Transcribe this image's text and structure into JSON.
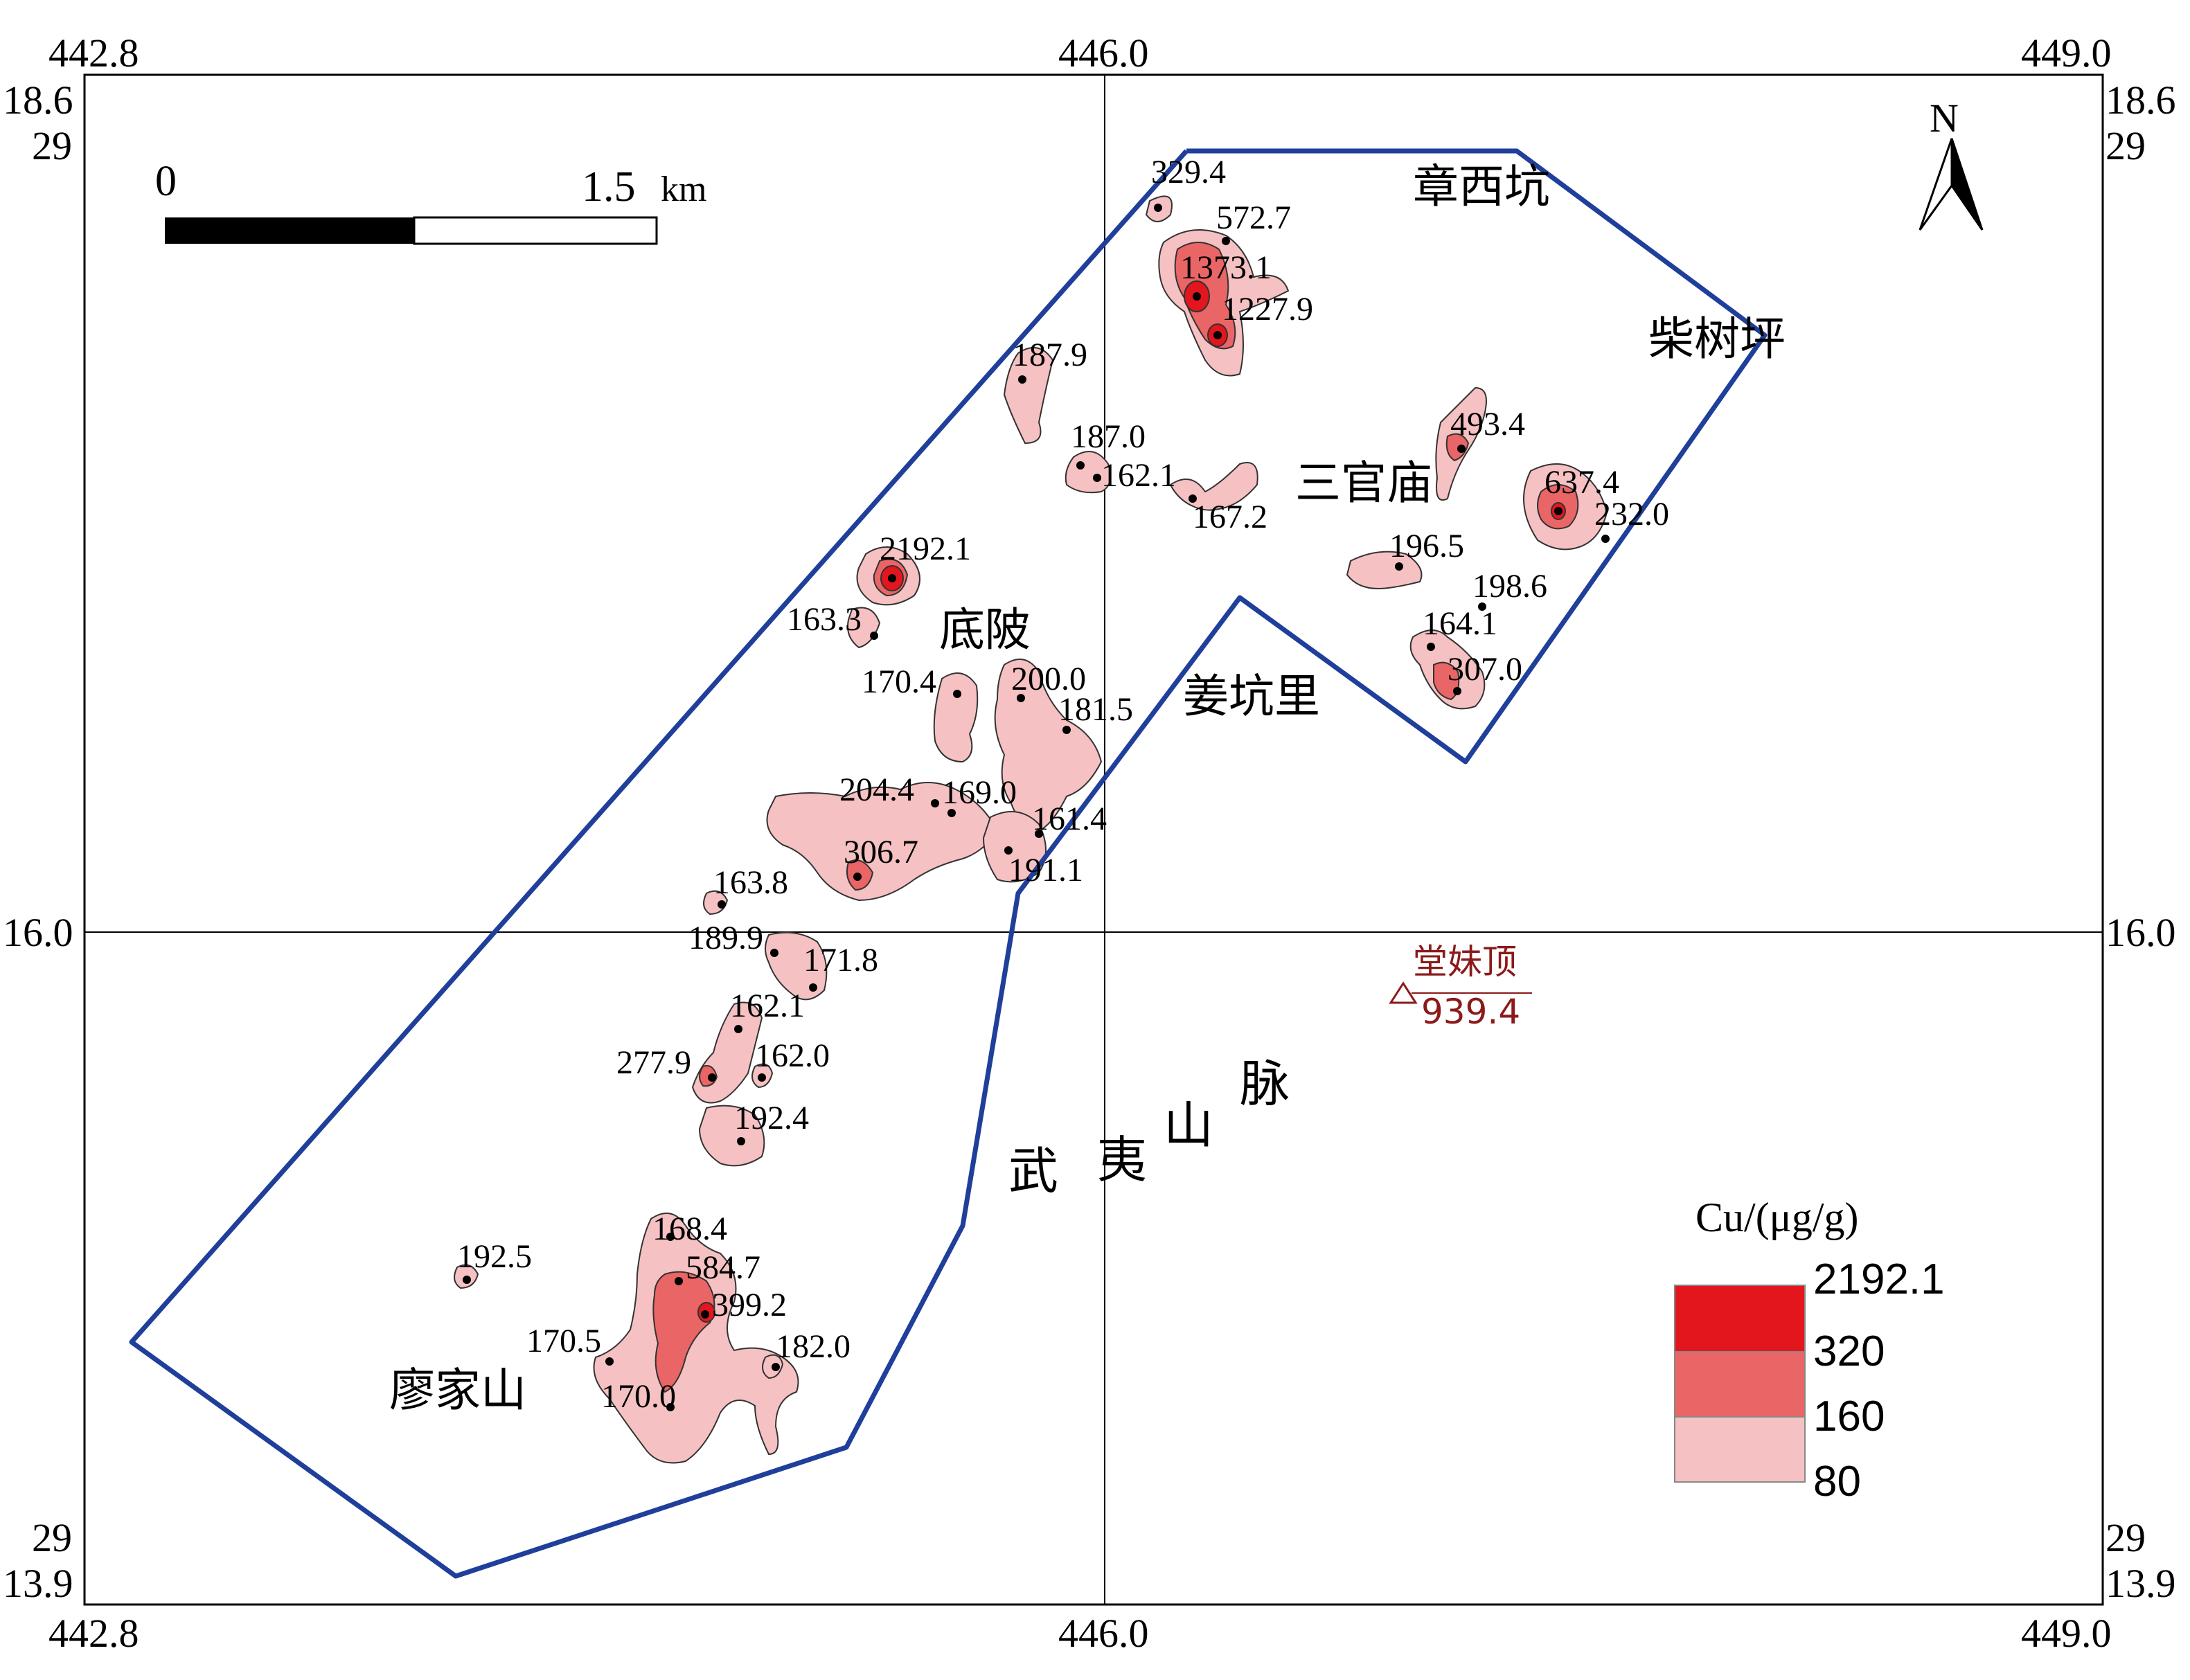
{
  "map": {
    "x_ticks": {
      "left": "442.8",
      "middle": "446.0",
      "right": "449.0"
    },
    "y_ticks": {
      "top": "18.6",
      "middle": "16.0",
      "bottom": "13.9",
      "suffix": "29"
    },
    "scale_bar": {
      "start": "0",
      "end": "1.5",
      "unit": "km"
    },
    "north_label": "N",
    "place_names": {
      "zhangxikeng": "章西坑",
      "chaishuping": "柴树坪",
      "sanguanmiao": "三官庙",
      "diling": "底陂",
      "jiangkengli": "姜坑里",
      "liaojiashan": "廖家山"
    },
    "mountain_range": [
      "武",
      "夷",
      "山",
      "脉"
    ],
    "peak": {
      "name": "堂妹顶",
      "elevation": "939.4"
    },
    "sample_labels": [
      "329.4",
      "572.7",
      "1373.1",
      "1227.9",
      "187.9",
      "187.0",
      "162.1",
      "167.2",
      "493.4",
      "637.4",
      "232.0",
      "196.5",
      "198.6",
      "164.1",
      "307.0",
      "2192.1",
      "163.3",
      "170.4",
      "200.0",
      "181.5",
      "204.4",
      "169.0",
      "161.4",
      "306.7",
      "191.1",
      "163.8",
      "189.9",
      "171.8",
      "162.1",
      "277.9",
      "162.0",
      "192.4",
      "168.4",
      "584.7",
      "399.2",
      "192.5",
      "170.5",
      "182.0",
      "170.0"
    ],
    "legend": {
      "title": "Cu/(μg/g)",
      "breaks": [
        "2192.1",
        "320",
        "160",
        "80"
      ],
      "colors": [
        "#e3161d",
        "#ea6566",
        "#f5c1c2"
      ]
    },
    "colors": {
      "boundary": "#1f3f9b",
      "anomaly_high": "#e3161d",
      "anomaly_mid": "#ea6566",
      "anomaly_low": "#f5c1c2",
      "peak": "#8b1a1a"
    }
  }
}
